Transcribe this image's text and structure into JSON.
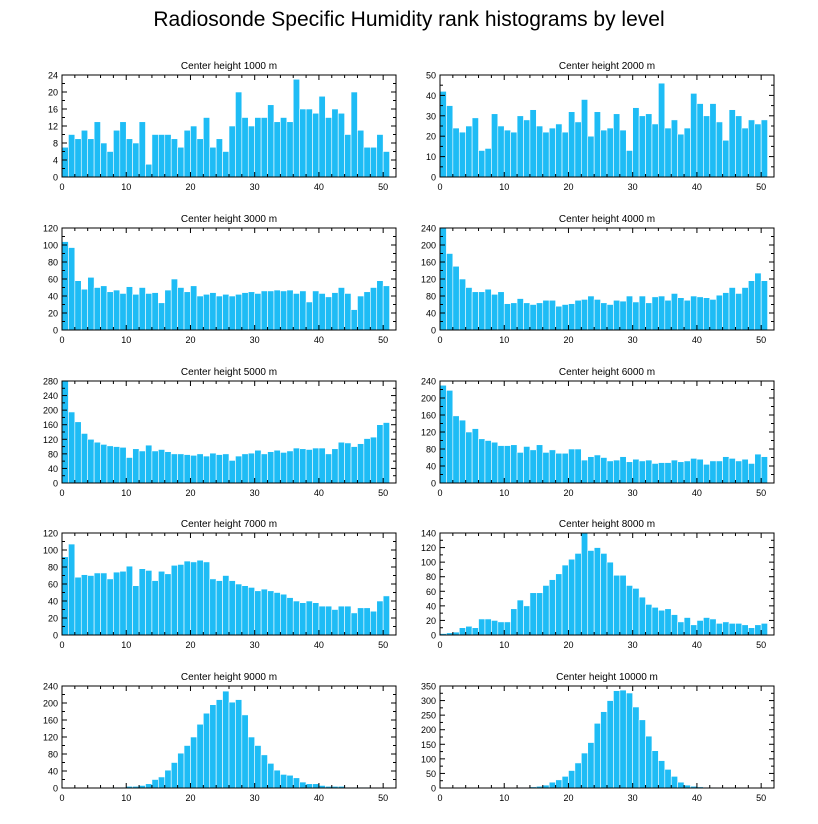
{
  "title": "Radiosonde Specific Humidity rank histograms by level",
  "colors": {
    "bar": "#1ebcf5",
    "bar_edge": "#ffffff",
    "axis": "#000000"
  },
  "chart_data": [
    {
      "type": "bar",
      "title": "Center height 1000 m",
      "x": "rank 0-51",
      "xlim": [
        0,
        52
      ],
      "ylim": [
        0,
        24
      ],
      "xticks": [
        0,
        10,
        20,
        30,
        40,
        50
      ],
      "yticks": [
        0,
        4,
        8,
        12,
        16,
        20,
        24
      ],
      "values": [
        7,
        10,
        9,
        11,
        9,
        13,
        8,
        6,
        11,
        13,
        9,
        8,
        13,
        3,
        10,
        10,
        10,
        9,
        7,
        11,
        12,
        9,
        14,
        7,
        9,
        6,
        12,
        20,
        14,
        12,
        14,
        14,
        17,
        13,
        14,
        13,
        23,
        16,
        16,
        15,
        19,
        14,
        16,
        15,
        10,
        20,
        11,
        7,
        7,
        10,
        6
      ]
    },
    {
      "type": "bar",
      "title": "Center height 2000 m",
      "x": "rank 0-51",
      "xlim": [
        0,
        52
      ],
      "ylim": [
        0,
        50
      ],
      "xticks": [
        0,
        10,
        20,
        30,
        40,
        50
      ],
      "yticks": [
        0,
        10,
        20,
        30,
        40,
        50
      ],
      "values": [
        42,
        35,
        24,
        22,
        25,
        29,
        13,
        14,
        31,
        25,
        23,
        22,
        30,
        28,
        33,
        25,
        22,
        24,
        26,
        22,
        32,
        27,
        38,
        20,
        32,
        23,
        24,
        31,
        23,
        13,
        34,
        30,
        31,
        26,
        46,
        24,
        28,
        21,
        24,
        41,
        36,
        30,
        36,
        27,
        18,
        33,
        30,
        24,
        28,
        26,
        28
      ]
    },
    {
      "type": "bar",
      "title": "Center height 3000 m",
      "x": "rank 0-51",
      "xlim": [
        0,
        52
      ],
      "ylim": [
        0,
        120
      ],
      "xticks": [
        0,
        10,
        20,
        30,
        40,
        50
      ],
      "yticks": [
        0,
        20,
        40,
        60,
        80,
        100,
        120
      ],
      "values": [
        104,
        97,
        58,
        48,
        62,
        50,
        52,
        45,
        47,
        43,
        51,
        42,
        50,
        43,
        44,
        32,
        47,
        60,
        50,
        45,
        52,
        40,
        42,
        44,
        40,
        42,
        40,
        42,
        44,
        45,
        43,
        46,
        46,
        47,
        46,
        47,
        43,
        46,
        33,
        46,
        43,
        39,
        44,
        50,
        43,
        24,
        40,
        45,
        50,
        58,
        52
      ]
    },
    {
      "type": "bar",
      "title": "Center height 4000 m",
      "x": "rank 0-51",
      "xlim": [
        0,
        52
      ],
      "ylim": [
        0,
        240
      ],
      "xticks": [
        0,
        10,
        20,
        30,
        40,
        50
      ],
      "yticks": [
        0,
        40,
        80,
        120,
        160,
        200,
        240
      ],
      "values": [
        242,
        180,
        150,
        120,
        100,
        90,
        90,
        96,
        84,
        90,
        62,
        64,
        74,
        64,
        60,
        64,
        70,
        70,
        56,
        60,
        62,
        70,
        72,
        80,
        72,
        64,
        60,
        70,
        68,
        80,
        66,
        80,
        64,
        78,
        80,
        70,
        86,
        76,
        70,
        80,
        78,
        76,
        72,
        82,
        88,
        100,
        86,
        100,
        116,
        134,
        116
      ]
    },
    {
      "type": "bar",
      "title": "Center height 5000 m",
      "x": "rank 0-51",
      "xlim": [
        0,
        52
      ],
      "ylim": [
        0,
        280
      ],
      "xticks": [
        0,
        10,
        20,
        30,
        40,
        50
      ],
      "yticks": [
        0,
        40,
        80,
        120,
        160,
        200,
        240,
        280
      ],
      "values": [
        280,
        195,
        168,
        136,
        120,
        112,
        106,
        102,
        100,
        98,
        70,
        94,
        88,
        104,
        88,
        92,
        86,
        80,
        80,
        78,
        76,
        80,
        74,
        82,
        78,
        80,
        62,
        74,
        80,
        82,
        90,
        80,
        86,
        90,
        84,
        88,
        96,
        94,
        92,
        96,
        96,
        80,
        94,
        112,
        110,
        100,
        108,
        122,
        126,
        160,
        166
      ]
    },
    {
      "type": "bar",
      "title": "Center height 6000 m",
      "x": "rank 0-51",
      "xlim": [
        0,
        52
      ],
      "ylim": [
        0,
        240
      ],
      "xticks": [
        0,
        10,
        20,
        30,
        40,
        50
      ],
      "yticks": [
        0,
        40,
        80,
        120,
        160,
        200,
        240
      ],
      "values": [
        230,
        218,
        158,
        148,
        120,
        128,
        104,
        100,
        96,
        88,
        88,
        90,
        72,
        86,
        78,
        90,
        72,
        78,
        70,
        70,
        80,
        80,
        54,
        62,
        66,
        60,
        52,
        54,
        62,
        50,
        56,
        52,
        54,
        46,
        48,
        48,
        54,
        50,
        52,
        58,
        56,
        44,
        52,
        52,
        62,
        58,
        52,
        56,
        46,
        68,
        62
      ]
    },
    {
      "type": "bar",
      "title": "Center height 7000 m",
      "x": "rank 0-51",
      "xlim": [
        0,
        52
      ],
      "ylim": [
        0,
        120
      ],
      "xticks": [
        0,
        10,
        20,
        30,
        40,
        50
      ],
      "yticks": [
        0,
        20,
        40,
        60,
        80,
        100,
        120
      ],
      "values": [
        92,
        107,
        68,
        71,
        70,
        73,
        73,
        66,
        74,
        75,
        81,
        58,
        78,
        76,
        64,
        75,
        72,
        82,
        83,
        87,
        86,
        88,
        86,
        66,
        64,
        70,
        64,
        60,
        58,
        56,
        52,
        54,
        52,
        50,
        48,
        44,
        40,
        38,
        40,
        38,
        34,
        34,
        30,
        34,
        34,
        26,
        32,
        32,
        28,
        40,
        46
      ]
    },
    {
      "type": "bar",
      "title": "Center height 8000 m",
      "x": "rank 0-51",
      "xlim": [
        0,
        52
      ],
      "ylim": [
        0,
        140
      ],
      "xticks": [
        0,
        10,
        20,
        30,
        40,
        50
      ],
      "yticks": [
        0,
        20,
        40,
        60,
        80,
        100,
        120,
        140
      ],
      "values": [
        2,
        3,
        4,
        10,
        12,
        10,
        22,
        22,
        20,
        18,
        18,
        36,
        48,
        40,
        58,
        58,
        68,
        76,
        84,
        96,
        104,
        112,
        140,
        116,
        120,
        112,
        100,
        82,
        82,
        68,
        64,
        52,
        42,
        38,
        34,
        36,
        28,
        18,
        24,
        14,
        20,
        24,
        22,
        16,
        18,
        16,
        16,
        14,
        10,
        14,
        16
      ]
    },
    {
      "type": "bar",
      "title": "Center height 9000 m",
      "x": "rank 0-51",
      "xlim": [
        0,
        52
      ],
      "ylim": [
        0,
        240
      ],
      "xticks": [
        0,
        10,
        20,
        30,
        40,
        50
      ],
      "yticks": [
        0,
        40,
        80,
        120,
        160,
        200,
        240
      ],
      "values": [
        1,
        1,
        1,
        1,
        1,
        1,
        1,
        1,
        2,
        2,
        4,
        4,
        6,
        10,
        20,
        26,
        42,
        60,
        82,
        100,
        120,
        150,
        176,
        196,
        208,
        228,
        202,
        208,
        172,
        120,
        100,
        78,
        58,
        42,
        32,
        30,
        24,
        14,
        10,
        10,
        6,
        4,
        4,
        4,
        2,
        2,
        2,
        2,
        1,
        1,
        1
      ]
    },
    {
      "type": "bar",
      "title": "Center height 10000 m",
      "x": "rank 0-51",
      "xlim": [
        0,
        52
      ],
      "ylim": [
        0,
        350
      ],
      "xticks": [
        0,
        10,
        20,
        30,
        40,
        50
      ],
      "yticks": [
        0,
        50,
        100,
        150,
        200,
        250,
        300,
        350
      ],
      "values": [
        1,
        1,
        1,
        1,
        1,
        1,
        1,
        1,
        1,
        1,
        1,
        1,
        2,
        2,
        4,
        6,
        10,
        20,
        28,
        40,
        60,
        86,
        120,
        156,
        222,
        262,
        300,
        334,
        336,
        326,
        278,
        234,
        178,
        128,
        94,
        64,
        40,
        20,
        10,
        6,
        4,
        2,
        2,
        1,
        1,
        1,
        1,
        1,
        1,
        1,
        1
      ]
    }
  ]
}
